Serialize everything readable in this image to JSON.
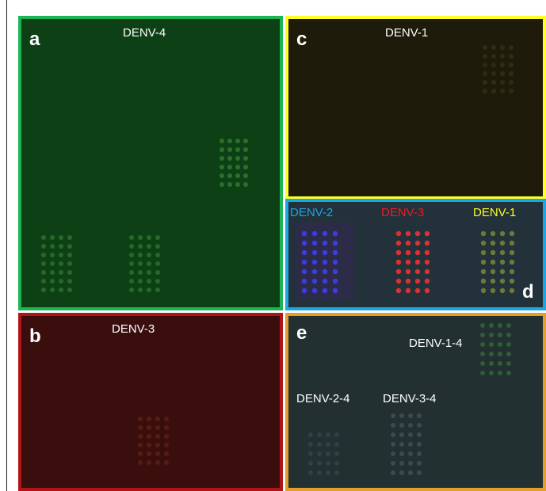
{
  "panels": {
    "a": {
      "letter": "a",
      "label": "DENV-4",
      "border": "#1db553",
      "background": "#0e4016",
      "letter_color": "#ffffff",
      "label_color": "#ffffff"
    },
    "b": {
      "letter": "b",
      "label": "DENV-3",
      "border": "#b11417",
      "background": "#3b0e0e",
      "letter_color": "#ffffff",
      "label_color": "#ffffff"
    },
    "c": {
      "letter": "c",
      "label": "DENV-1",
      "border": "#ffff24",
      "background": "#1f1b0b",
      "letter_color": "#ffffff",
      "label_color": "#ffffff"
    },
    "d": {
      "letter": "d",
      "border": "#1ba6e6",
      "background": "#22313a",
      "letter_color": "#ffffff",
      "labels": [
        {
          "text": "DENV-2",
          "color": "#1ba6e6"
        },
        {
          "text": "DENV-3",
          "color": "#ee1c24"
        },
        {
          "text": "DENV-1",
          "color": "#ffff26"
        }
      ]
    },
    "e": {
      "letter": "e",
      "border": "#e19e2b",
      "background": "#223032",
      "letter_color": "#ffffff",
      "labels": [
        {
          "text": "DENV-1-4",
          "color": "#ffffff"
        },
        {
          "text": "DENV-2-4",
          "color": "#ffffff"
        },
        {
          "text": "DENV-3-4",
          "color": "#ffffff"
        }
      ]
    }
  },
  "spot_colors": {
    "a": "#3a8a3a",
    "b": "#6a2a1a",
    "c": "#3a4a18",
    "d_blue": "#4040ff",
    "d_red": "#ff3030",
    "d_yellow": "#8a9a38",
    "e_green": "#3a7a3a",
    "e_gray": "#46555a"
  }
}
